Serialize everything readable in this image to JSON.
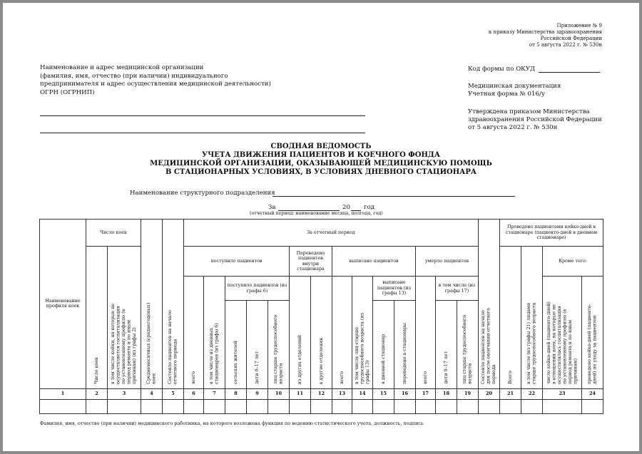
{
  "appendix": [
    "Приложение № 9",
    "к приказу Министерства здравоохранения",
    "Российской Федерации",
    "от 5 августа 2022 г. № 530н"
  ],
  "org": [
    "Наименование и адрес медицинской организации",
    "(фамилия, имя, отчество (при наличии) индивидуального",
    "предпринимателя и адрес осуществления медицинской деятельности)",
    "ОГРН (ОГРНИП)"
  ],
  "okud": "Код формы по ОКУД",
  "meddoc": [
    "Медицинская документация",
    "Учетная форма № 016/у"
  ],
  "approved": [
    "Утверждена приказом Министерства",
    "здравоохранения Российской Федерации",
    "от 5 августа 2022 г. № 530н"
  ],
  "title": [
    "СВОДНАЯ ВЕДОМОСТЬ",
    "УЧЕТА ДВИЖЕНИЯ ПАЦИЕНТОВ И КОЕЧНОГО ФОНДА",
    "МЕДИЦИНСКОЙ ОРГАНИЗАЦИИ, ОКАЗЫВАЮЩЕЙ МЕДИЦИНСКУЮ ПОМОЩЬ",
    "В СТАЦИОНАРНЫХ УСЛОВИЯХ, В УСЛОВИЯХ ДНЕВНОГО СТАЦИОНАРА"
  ],
  "unit_label": "Наименование структурного подразделения",
  "period": {
    "za": "За",
    "year_prefix": "20",
    "year": "год",
    "note": "(отчетный период: наименование месяца, полгода, год)"
  },
  "table": {
    "h": {
      "c1": "Наименование профиля коек",
      "beds": "Число коек",
      "c2": "Число коек",
      "c3": "в том числе койки, на которые не осуществляется госпитализация по установленному профилю (в период ремонта и по иным причинам) (из графы 2)",
      "c4": "Среднемесячных (среднегодовых) коек",
      "c5": "Состояло пациентов на начало отчетного периода",
      "period": "За отчетный период",
      "admitted": "поступило пациентов",
      "c6": "всего",
      "c7": "в том числе из дневных стационаров (из графы 6)",
      "admitted_sub": "поступило пациентов (из графы 6)",
      "c8": "сельских жителей",
      "c9": "дети 0–17 лет",
      "c10": "лиц старше трудоспособного возраста",
      "transferred": "Переведено пациентов внутри стационара",
      "c11": "из других отделений",
      "c12": "в другие отделения",
      "discharged": "выписано пациентов",
      "c13": "всего",
      "c14": "в том числе лиц старше трудоспособного возраста (из графы 13)",
      "discharged_sub": "выписано пациентов (из графы 13)",
      "c15": "в дневной стационар",
      "c16": "переведено в стационары",
      "died": "умерло пациентов",
      "c17": "всего",
      "died_sub": "в том числе (из графы 17)",
      "c18": "дети 0–17 лет",
      "c19": "лиц старше трудоспособного возраста",
      "c20": "Состояло пациентов на начало дня после окончания отчетного периода",
      "beddays": "Проведено пациентами койко-дней в стационаре (пациенто-дней в дневном стационаре)",
      "c21": "Всего",
      "c22": "в том числе (из графы 21) лицами старше трудоспособного возраста",
      "besides": "Кроме того:",
      "c23": "число койко-дней (пациенто-дней) в отношении коек, на которые не осуществлялась госпитализация по установленному профилю (в период ремонта и по иным причинам)",
      "c24": "проведено койко-дней (пациенто-дней) по уходу за пациентом"
    },
    "numbers": [
      "1",
      "2",
      "3",
      "4",
      "5",
      "6",
      "7",
      "8",
      "9",
      "10",
      "11",
      "12",
      "13",
      "14",
      "15",
      "16",
      "17",
      "18",
      "19",
      "20",
      "21",
      "22",
      "23",
      "24"
    ]
  },
  "footer": "Фамилия, имя, отчество (при наличии) медицинского работника, на которого возложена функция по ведению статистического учета, должность, подпись"
}
